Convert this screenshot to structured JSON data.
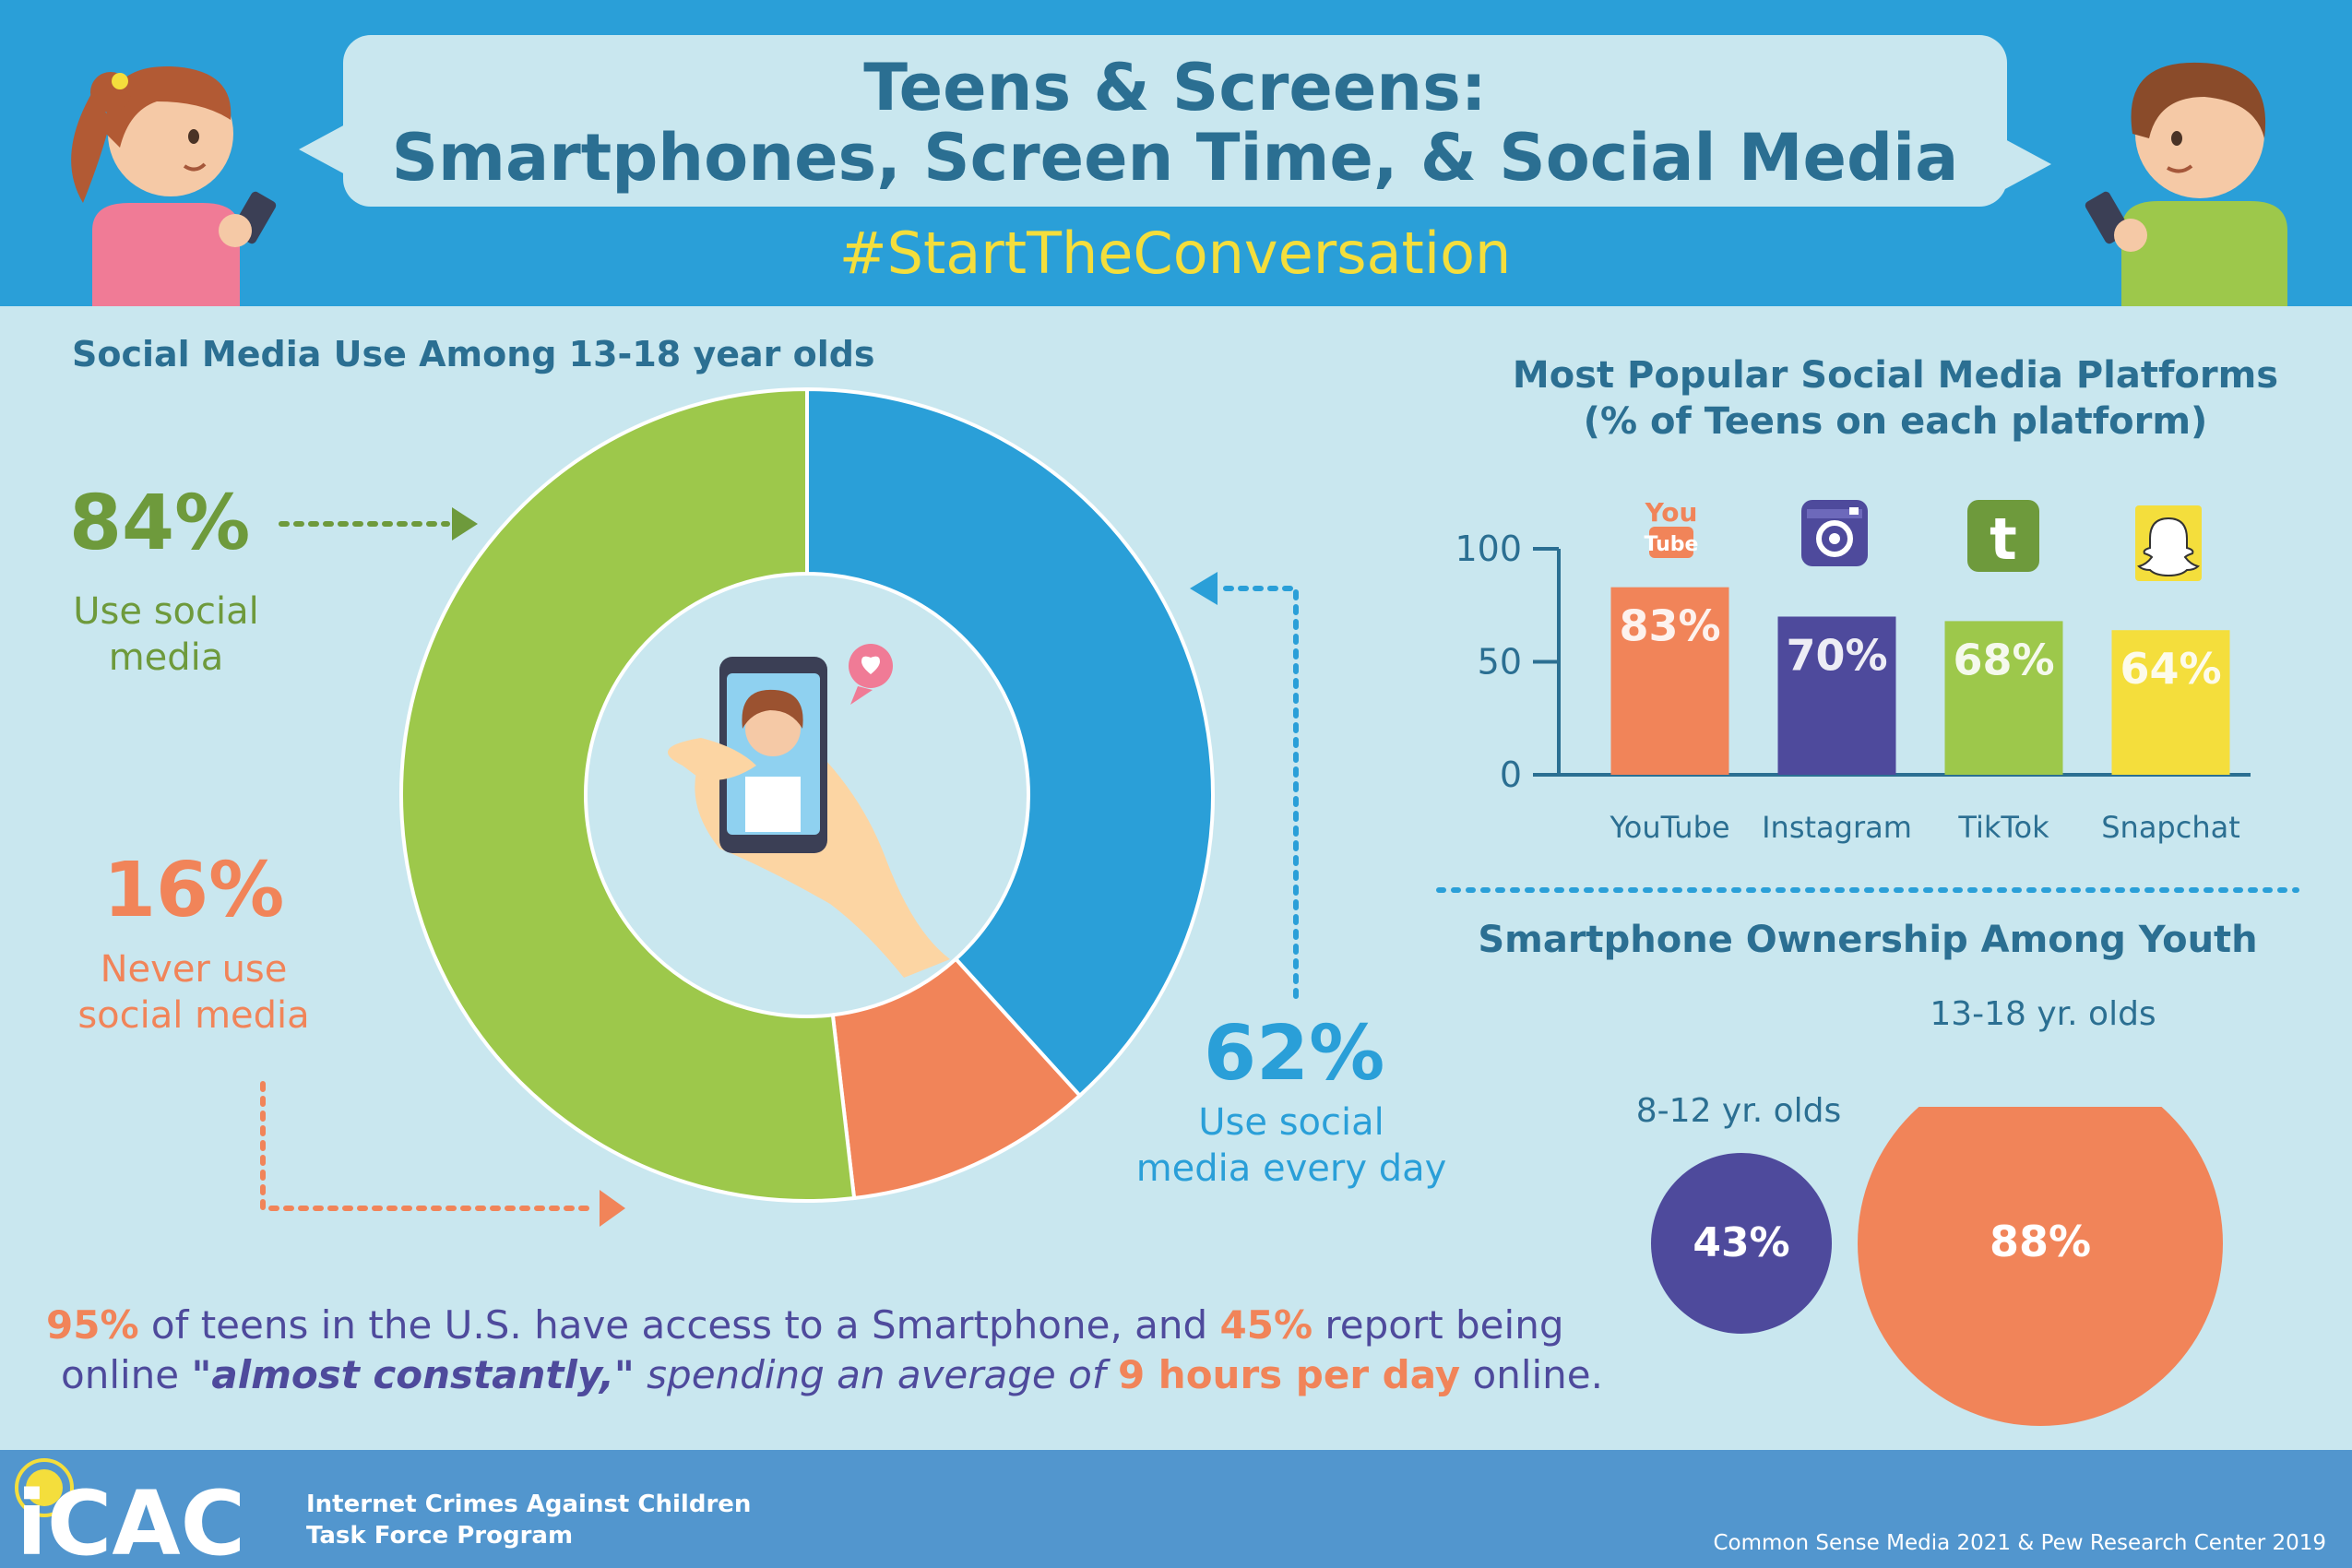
{
  "header": {
    "title_line1": "Teens & Screens:",
    "title_line2": "Smartphones, Screen Time, & Social Media",
    "hashtag": "#StartTheConversation"
  },
  "donut_section": {
    "title": "Social Media Use Among 13-18 year olds",
    "use_pct": "84%",
    "use_label_1": "Use social",
    "use_label_2": "media",
    "never_pct": "16%",
    "never_label_1": "Never use",
    "never_label_2": "social media",
    "daily_pct": "62%",
    "daily_label_1": "Use social",
    "daily_label_2": "media every day"
  },
  "bar_section": {
    "title_line1": "Most Popular Social Media Platforms",
    "title_line2": "(% of Teens on each platform)",
    "icon_labels": {
      "youtube_you": "You",
      "youtube_tube": "Tube",
      "tiktok": "t"
    }
  },
  "ownership_section": {
    "title": "Smartphone Ownership Among Youth",
    "groups": [
      {
        "label": "8-12 yr. olds",
        "value_label": "43%"
      },
      {
        "label": "13-18 yr. olds",
        "value_label": "88%"
      }
    ]
  },
  "bottom_text": {
    "p1": "95%",
    "t1": " of teens in the U.S. have access to a Smartphone, and ",
    "p2": "45%",
    "t2": " report being",
    "t3": "online ",
    "emph": "\"almost constantly,\"",
    "t4": " spending an average of ",
    "p3": "9 hours per day",
    "t5": " online."
  },
  "footer": {
    "logo": "iCAC",
    "org_line1": "Internet Crimes Against Children",
    "org_line2": "Task Force Program",
    "source": "Common Sense Media 2021 & Pew Research Center 2019"
  },
  "colors": {
    "blue": "#2a9fd8",
    "green": "#9dc84b",
    "orange": "#f18459",
    "purple": "#4e4a9c",
    "yellow": "#f4de3c",
    "dark_teal": "#2b6f92"
  },
  "chart_data": [
    {
      "type": "pie",
      "title": "Social Media Use Among 13-18 year olds",
      "slices": [
        {
          "name": "Use social media every day",
          "value": 62,
          "color": "#2a9fd8"
        },
        {
          "name": "Never use social media",
          "value": 16,
          "color": "#f18459"
        },
        {
          "name": "Use social media",
          "value": 84,
          "color": "#9dc84b"
        }
      ]
    },
    {
      "type": "bar",
      "title": "Most Popular Social Media Platforms (% of Teens on each platform)",
      "categories": [
        "YouTube",
        "Instagram",
        "TikTok",
        "Snapchat"
      ],
      "values": [
        83,
        70,
        68,
        64
      ],
      "value_labels": [
        "83%",
        "70%",
        "68%",
        "64%"
      ],
      "colors": [
        "#f18459",
        "#4e4a9c",
        "#9dc84b",
        "#f4de3c"
      ],
      "yticks": [
        "0",
        "50",
        "100"
      ],
      "ylim": [
        0,
        100
      ]
    },
    {
      "type": "bubble",
      "title": "Smartphone Ownership Among Youth",
      "categories": [
        "8-12 yr. olds",
        "13-18 yr. olds"
      ],
      "values": [
        43,
        88
      ],
      "colors": [
        "#4e4a9c",
        "#f18459"
      ]
    }
  ]
}
